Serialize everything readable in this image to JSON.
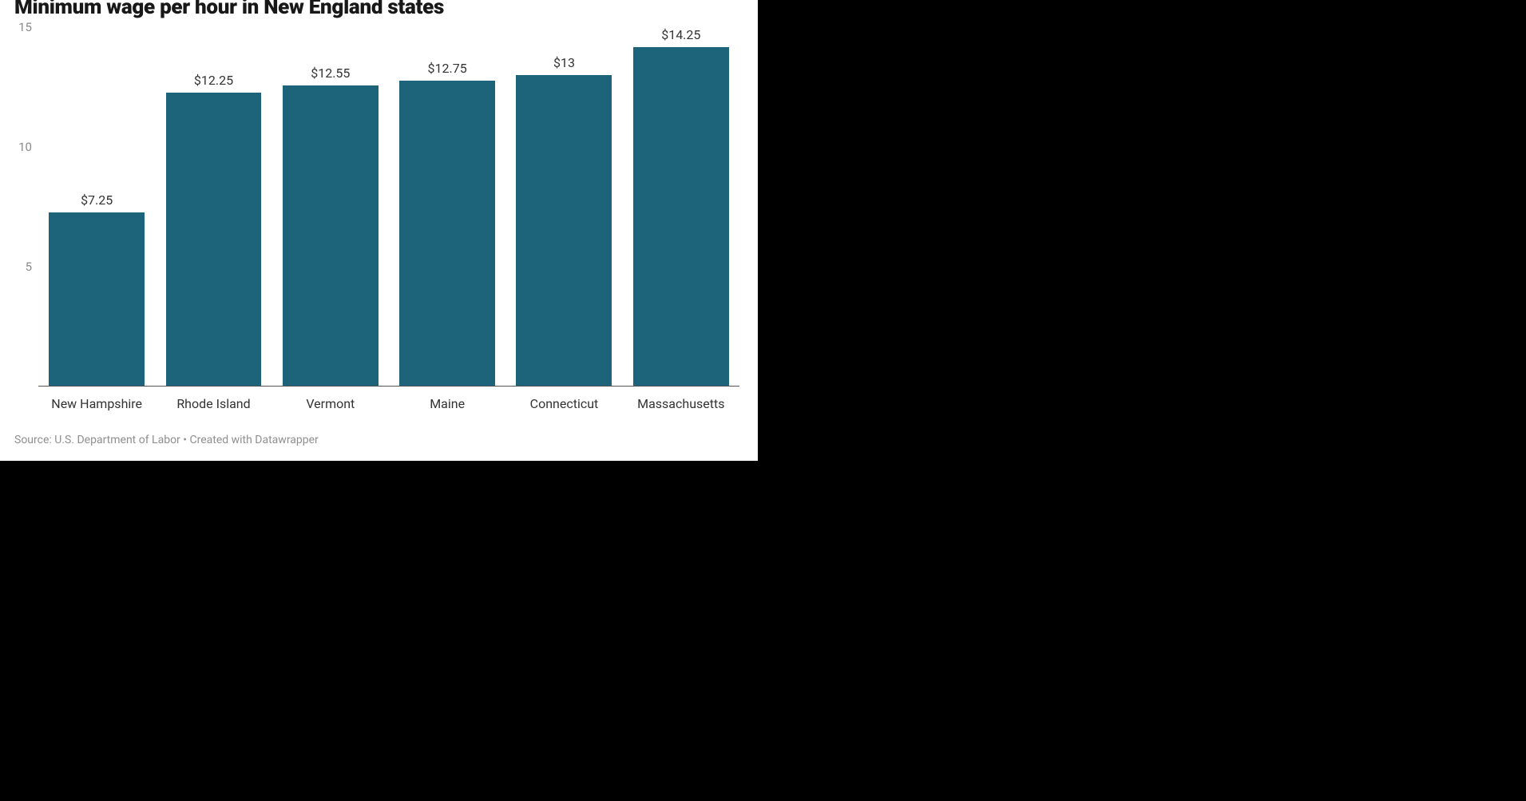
{
  "chart": {
    "type": "bar",
    "title": "Minimum wage per hour in New England states",
    "title_fontsize": 26,
    "title_color": "#181818",
    "background_color": "#ffffff",
    "page_background": "#000000",
    "bar_color": "#1d6379",
    "axis_label_color": "#8a8a8a",
    "value_label_color": "#333333",
    "x_label_color": "#333333",
    "baseline_color": "#555555",
    "source_color": "#8f8f8f",
    "ylim": [
      0,
      15
    ],
    "yticks": [
      5,
      10,
      15
    ],
    "bar_width_pct": 82,
    "categories": [
      "New Hampshire",
      "Rhode Island",
      "Vermont",
      "Maine",
      "Connecticut",
      "Massachusetts"
    ],
    "values": [
      7.25,
      12.25,
      12.55,
      12.75,
      13,
      14.25
    ],
    "value_labels": [
      "$7.25",
      "$12.25",
      "$12.55",
      "$12.75",
      "$13",
      "$14.25"
    ],
    "source": "Source: U.S. Department of Labor • Created with Datawrapper"
  }
}
